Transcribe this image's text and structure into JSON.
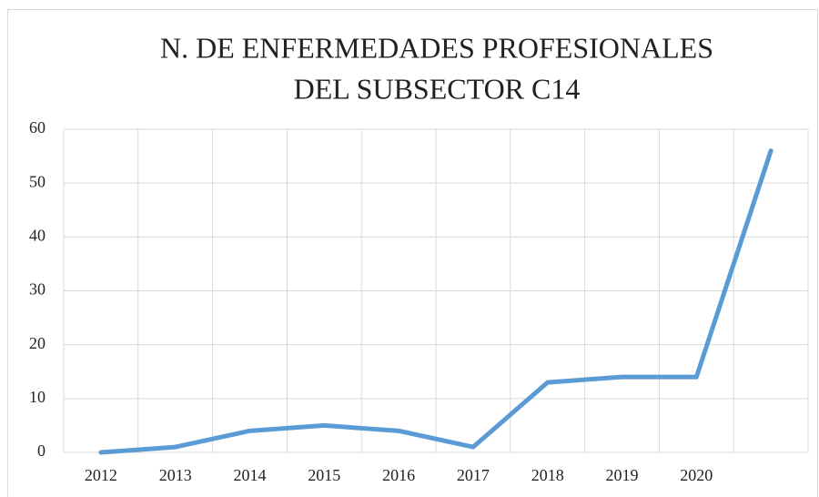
{
  "chart_data": {
    "type": "line",
    "title": [
      "N. DE ENFERMEDADES PROFESIONALES",
      "DEL SUBSECTOR C14"
    ],
    "categories": [
      "2012",
      "2013",
      "2014",
      "2015",
      "2016",
      "2017",
      "2018",
      "2019",
      "2020",
      null
    ],
    "values": [
      0,
      1,
      4,
      5,
      4,
      1,
      13,
      14,
      14,
      56
    ],
    "color": "#5b9bd5",
    "ylim": [
      0,
      60
    ],
    "yticks": [
      0,
      10,
      20,
      30,
      40,
      50,
      60
    ],
    "grid": true
  }
}
